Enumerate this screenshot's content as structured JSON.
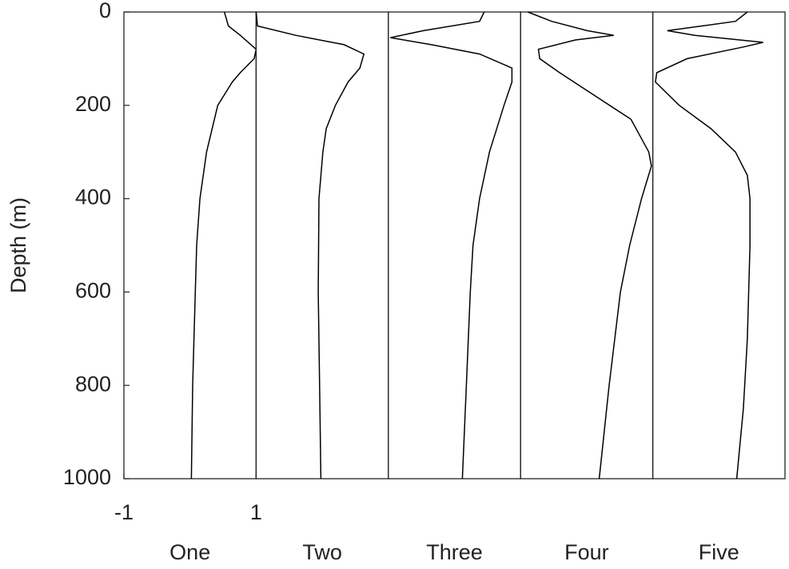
{
  "chart_data": {
    "type": "line",
    "ylabel": "Depth (m)",
    "ylim": [
      0,
      1000
    ],
    "yticks": [
      0,
      200,
      400,
      600,
      800,
      1000
    ],
    "y_inverted": true,
    "xlim": [
      -1,
      1
    ],
    "xticks": [
      -1,
      1
    ],
    "color": "#000000",
    "series": [
      {
        "name": "One",
        "y": [
          0,
          30,
          50,
          80,
          100,
          130,
          150,
          200,
          300,
          400,
          500,
          600,
          800,
          1000
        ],
        "values": [
          0.52,
          0.58,
          0.76,
          1.0,
          0.97,
          0.76,
          0.64,
          0.42,
          0.25,
          0.15,
          0.1,
          0.08,
          0.04,
          0.02
        ]
      },
      {
        "name": "Two",
        "y": [
          0,
          30,
          50,
          70,
          90,
          120,
          150,
          200,
          250,
          300,
          400,
          600,
          800,
          1000
        ],
        "values": [
          -1.0,
          -0.98,
          -0.4,
          0.33,
          0.63,
          0.57,
          0.39,
          0.2,
          0.06,
          0.01,
          -0.05,
          -0.06,
          -0.04,
          -0.02
        ]
      },
      {
        "name": "Three",
        "y": [
          0,
          20,
          40,
          55,
          70,
          90,
          120,
          150,
          200,
          300,
          400,
          500,
          600,
          800,
          1000
        ],
        "values": [
          0.45,
          0.38,
          -0.47,
          -0.97,
          -0.35,
          0.38,
          0.87,
          0.87,
          0.75,
          0.53,
          0.38,
          0.28,
          0.24,
          0.18,
          0.12
        ]
      },
      {
        "name": "Four",
        "y": [
          0,
          20,
          40,
          50,
          60,
          80,
          100,
          130,
          180,
          230,
          300,
          330,
          400,
          500,
          600,
          800,
          1000
        ],
        "values": [
          -0.89,
          -0.53,
          0.01,
          0.41,
          -0.17,
          -0.73,
          -0.71,
          -0.41,
          0.13,
          0.67,
          0.94,
          0.98,
          0.83,
          0.65,
          0.51,
          0.34,
          0.19
        ]
      },
      {
        "name": "Five",
        "y": [
          0,
          20,
          40,
          50,
          65,
          75,
          100,
          130,
          150,
          200,
          250,
          300,
          350,
          400,
          500,
          700,
          850,
          1000
        ],
        "values": [
          0.43,
          0.25,
          -0.78,
          -0.36,
          0.67,
          0.37,
          -0.48,
          -0.94,
          -0.96,
          -0.6,
          -0.12,
          0.25,
          0.43,
          0.47,
          0.47,
          0.43,
          0.37,
          0.27
        ]
      }
    ]
  }
}
